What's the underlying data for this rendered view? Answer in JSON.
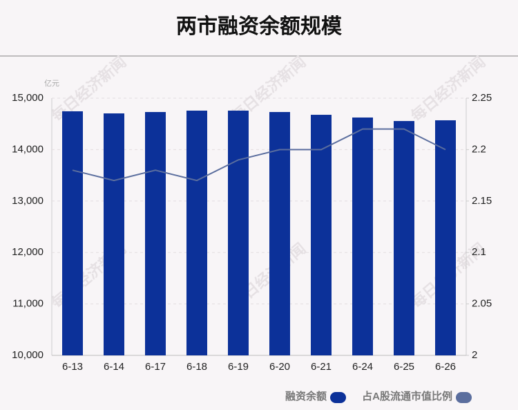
{
  "chart_data": {
    "type": "bar-line",
    "title": "两市融资余额规模",
    "unit_label": "亿元",
    "watermark": "每日经济新闻",
    "categories": [
      "6-13",
      "6-14",
      "6-17",
      "6-18",
      "6-19",
      "6-20",
      "6-21",
      "6-24",
      "6-25",
      "6-26"
    ],
    "series": [
      {
        "name": "融资余额",
        "type": "bar",
        "color": "#0c3199",
        "values": [
          14745,
          14704,
          14731,
          14758,
          14758,
          14731,
          14677,
          14624,
          14556,
          14570
        ]
      },
      {
        "name": "占A股流通市值比例",
        "type": "line",
        "axis": "y2",
        "color": "#5b6e9e",
        "values": [
          2.18,
          2.17,
          2.18,
          2.17,
          2.19,
          2.2,
          2.2,
          2.22,
          2.22,
          2.2
        ]
      }
    ],
    "ylim": [
      10000,
      15000
    ],
    "yticks": [
      {
        "value": 10000,
        "label": "10,000"
      },
      {
        "value": 11000,
        "label": "11,000"
      },
      {
        "value": 12000,
        "label": "12,000"
      },
      {
        "value": 13000,
        "label": "13,000"
      },
      {
        "value": 14000,
        "label": "14,000"
      },
      {
        "value": 15000,
        "label": "15,000"
      }
    ],
    "y2lim": [
      2,
      2.25
    ],
    "y2ticks": [
      2,
      2.05,
      2.1,
      2.15,
      2.2,
      2.25
    ],
    "grid": true
  }
}
